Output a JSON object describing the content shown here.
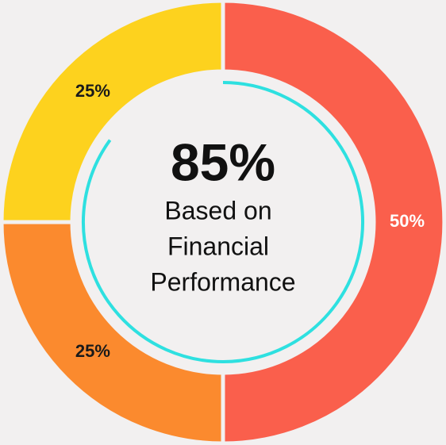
{
  "chart_data": {
    "type": "donut",
    "categories": [
      null,
      null,
      null
    ],
    "values": [
      50,
      25,
      25
    ],
    "value_labels": [
      "50%",
      "25%",
      "25%"
    ],
    "colors": [
      "#fa5f4c",
      "#fb8a2e",
      "#fdd21e"
    ],
    "label_colors": [
      "#ffffff",
      "#1a1a1a",
      "#1a1a1a"
    ],
    "center_value": 85,
    "center_value_label": "85%",
    "center_text": [
      "Based on",
      "Financial",
      "Performance"
    ],
    "progress_color": "#2ee0e0"
  }
}
